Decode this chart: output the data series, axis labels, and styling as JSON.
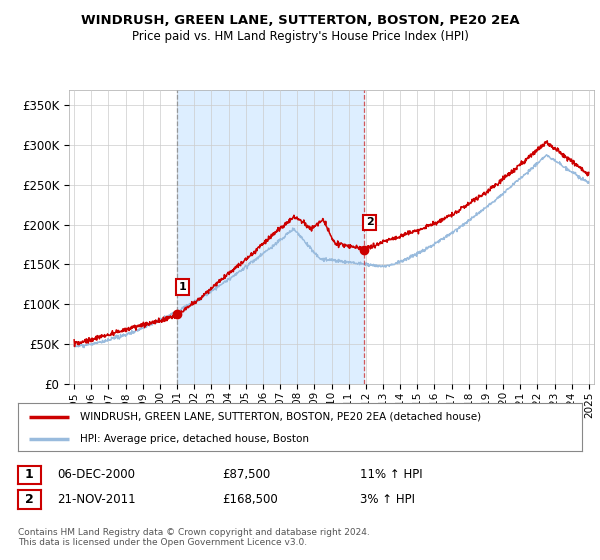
{
  "title": "WINDRUSH, GREEN LANE, SUTTERTON, BOSTON, PE20 2EA",
  "subtitle": "Price paid vs. HM Land Registry's House Price Index (HPI)",
  "ylim": [
    0,
    370000
  ],
  "yticks": [
    0,
    50000,
    100000,
    150000,
    200000,
    250000,
    300000,
    350000
  ],
  "xlim_start": 1994.7,
  "xlim_end": 2025.3,
  "red_line_color": "#cc0000",
  "blue_line_color": "#99bbdd",
  "shade_color": "#ddeeff",
  "marker1_x": 2001.0,
  "marker1_y": 87500,
  "marker2_x": 2011.92,
  "marker2_y": 168500,
  "vline1_x": 2001.0,
  "vline2_x": 2011.92,
  "legend_red_label": "WINDRUSH, GREEN LANE, SUTTERTON, BOSTON, PE20 2EA (detached house)",
  "legend_blue_label": "HPI: Average price, detached house, Boston",
  "table_row1": [
    "1",
    "06-DEC-2000",
    "£87,500",
    "11% ↑ HPI"
  ],
  "table_row2": [
    "2",
    "21-NOV-2011",
    "£168,500",
    "3% ↑ HPI"
  ],
  "footer": "Contains HM Land Registry data © Crown copyright and database right 2024.\nThis data is licensed under the Open Government Licence v3.0.",
  "background_color": "#ffffff",
  "grid_color": "#cccccc"
}
